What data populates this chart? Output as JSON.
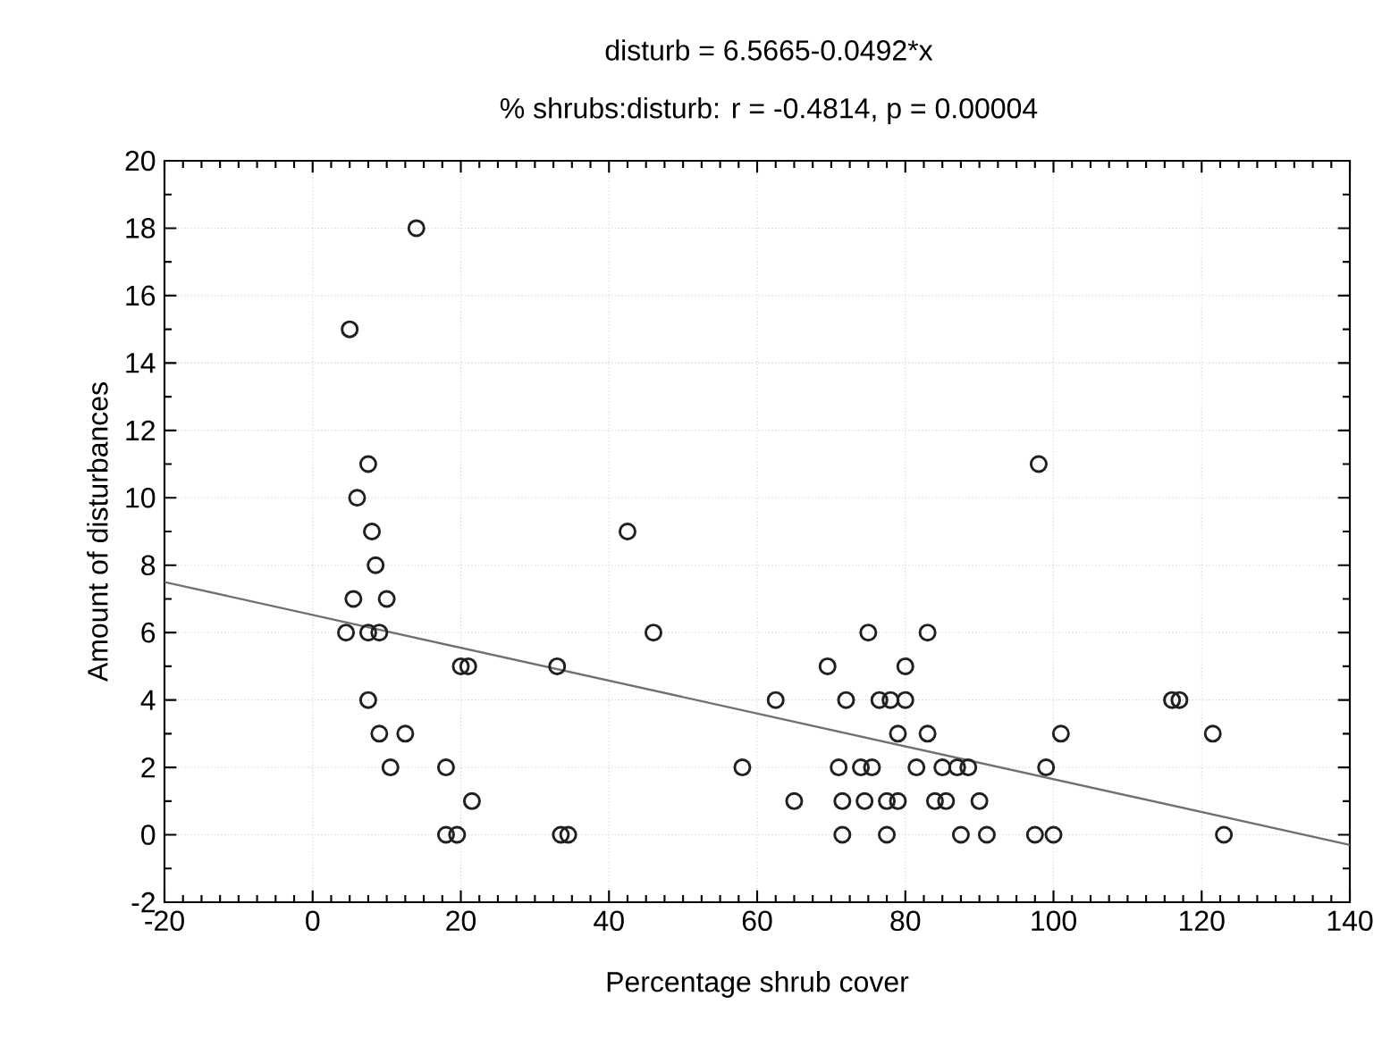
{
  "chart_data": {
    "type": "scatter",
    "title": "disturb = 6.5665-0.0492*x",
    "subtitle": "% shrubs:disturb:   r = -0.4814,  p = 0.00004",
    "xlabel": "Percentage shrub cover",
    "ylabel": "Amount of disturbances",
    "xlim": [
      -20,
      140
    ],
    "ylim": [
      -2,
      20
    ],
    "xticks": [
      -20,
      0,
      20,
      40,
      60,
      80,
      100,
      120,
      140
    ],
    "yticks": [
      -2,
      0,
      2,
      4,
      6,
      8,
      10,
      12,
      14,
      16,
      18,
      20
    ],
    "grid": true,
    "series": [
      {
        "color": "#202020",
        "marker": "circle",
        "x": [
          14,
          5,
          7.5,
          6,
          8,
          8.5,
          5.5,
          10,
          4.5,
          7.5,
          9,
          20,
          21,
          7.5,
          9,
          12.5,
          10.5,
          18,
          21.5,
          18,
          19.5,
          42.5,
          46,
          33,
          69.5,
          75,
          62.5,
          72,
          76.5,
          78,
          80,
          58,
          71,
          74,
          75.5,
          65,
          71.5,
          74.5,
          77.5,
          33.5,
          34.5,
          71.5,
          77.5,
          98,
          83,
          80,
          116,
          117,
          79,
          83,
          101,
          121.5,
          81.5,
          85,
          87,
          88.5,
          99,
          79,
          84,
          85.5,
          90,
          87.5,
          91,
          97.5,
          100,
          123
        ],
        "values": [
          18,
          15,
          11,
          10,
          9,
          8,
          7,
          7,
          6,
          6,
          6,
          5,
          5,
          4,
          3,
          3,
          2,
          2,
          1,
          0,
          0,
          9,
          6,
          5,
          5,
          6,
          4,
          4,
          4,
          4,
          4,
          2,
          2,
          2,
          2,
          1,
          1,
          1,
          1,
          0,
          0,
          0,
          0,
          11,
          6,
          5,
          4,
          4,
          3,
          3,
          3,
          3,
          2,
          2,
          2,
          2,
          2,
          1,
          1,
          1,
          1,
          0,
          0,
          0,
          0,
          0
        ]
      },
      {
        "type": "line",
        "color": "#707070",
        "line_style": "solid",
        "x": [
          -20,
          140
        ],
        "values": [
          7.5,
          -0.3
        ]
      }
    ]
  }
}
